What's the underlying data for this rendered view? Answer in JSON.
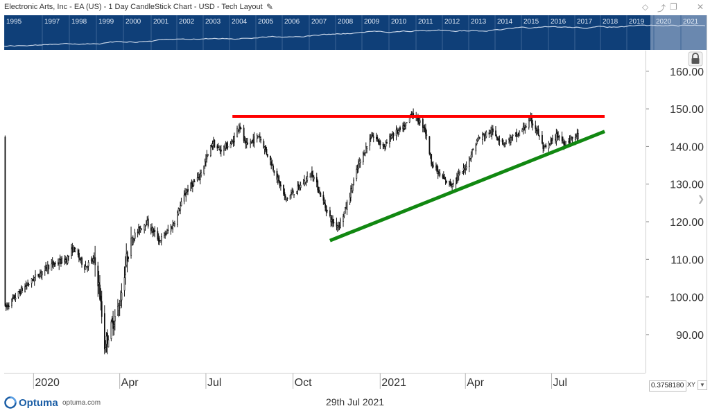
{
  "window": {
    "title": "Electronic Arts, Inc - EA (US) - 1 Day CandleStick Chart - USD - Tech Layout",
    "edit_icon": "pencil-icon",
    "controls": [
      "diamond-icon",
      "pin-icon",
      "restore-icon",
      "close-icon"
    ]
  },
  "overview": {
    "years": [
      "1995",
      "1997",
      "1998",
      "1999",
      "2000",
      "2001",
      "2002",
      "2003",
      "2004",
      "2005",
      "2006",
      "2007",
      "2008",
      "2009",
      "2010",
      "2011",
      "2012",
      "2013",
      "2014",
      "2015",
      "2016",
      "2017",
      "2018",
      "2019",
      "2020",
      "2021"
    ],
    "background": "#0f3f78",
    "line_color": "#c9d6e8",
    "selection_color": "#8aa2c2"
  },
  "chart_data": {
    "type": "candlestick",
    "title": "Electronic Arts, Inc - EA (US) - 1 Day CandleStick Chart - USD - Tech Layout",
    "x_tick_labels": [
      "2020",
      "Apr",
      "Jul",
      "Oct",
      "2021",
      "Apr",
      "Jul"
    ],
    "y_tick_labels": [
      "90.00",
      "100.00",
      "110.00",
      "120.00",
      "130.00",
      "140.00",
      "150.00",
      "160.00"
    ],
    "ylim": [
      82,
      165
    ],
    "grid": false,
    "price_path": [
      [
        "2019-12-02",
        97
      ],
      [
        "2019-12-20",
        102
      ],
      [
        "2020-01-15",
        108
      ],
      [
        "2020-02-05",
        110
      ],
      [
        "2020-02-12",
        113
      ],
      [
        "2020-02-24",
        108
      ],
      [
        "2020-03-05",
        110
      ],
      [
        "2020-03-10",
        103
      ],
      [
        "2020-03-16",
        87
      ],
      [
        "2020-03-23",
        92
      ],
      [
        "2020-04-01",
        98
      ],
      [
        "2020-04-08",
        110
      ],
      [
        "2020-04-15",
        116
      ],
      [
        "2020-04-29",
        120
      ],
      [
        "2020-05-13",
        115
      ],
      [
        "2020-05-27",
        119
      ],
      [
        "2020-06-10",
        128
      ],
      [
        "2020-06-24",
        132
      ],
      [
        "2020-07-08",
        141
      ],
      [
        "2020-07-15",
        139
      ],
      [
        "2020-07-29",
        141
      ],
      [
        "2020-08-05",
        146
      ],
      [
        "2020-08-12",
        140
      ],
      [
        "2020-08-26",
        143
      ],
      [
        "2020-09-09",
        135
      ],
      [
        "2020-09-23",
        126
      ],
      [
        "2020-10-07",
        129
      ],
      [
        "2020-10-21",
        133
      ],
      [
        "2020-11-04",
        124
      ],
      [
        "2020-11-11",
        120
      ],
      [
        "2020-11-18",
        119
      ],
      [
        "2020-11-25",
        123
      ],
      [
        "2020-12-09",
        135
      ],
      [
        "2020-12-23",
        143
      ],
      [
        "2021-01-06",
        140
      ],
      [
        "2021-01-13",
        143
      ],
      [
        "2021-01-27",
        145
      ],
      [
        "2021-02-03",
        149
      ],
      [
        "2021-02-17",
        145
      ],
      [
        "2021-02-24",
        136
      ],
      [
        "2021-03-03",
        133
      ],
      [
        "2021-03-10",
        131
      ],
      [
        "2021-03-17",
        130
      ],
      [
        "2021-03-31",
        134
      ],
      [
        "2021-04-14",
        142
      ],
      [
        "2021-04-28",
        144
      ],
      [
        "2021-05-12",
        141
      ],
      [
        "2021-05-26",
        143
      ],
      [
        "2021-06-09",
        147
      ],
      [
        "2021-06-16",
        144
      ],
      [
        "2021-06-23",
        139
      ],
      [
        "2021-07-07",
        143
      ],
      [
        "2021-07-14",
        141
      ],
      [
        "2021-07-29",
        143
      ]
    ],
    "resistance_line": {
      "level": 148,
      "from": "2020-07-29",
      "to": "2021-08-26",
      "color": "#ff0000"
    },
    "support_line": {
      "from": [
        "2020-11-09",
        115
      ],
      "to": [
        "2021-08-26",
        144
      ],
      "color": "#118811"
    }
  },
  "lock_icon": "lock-icon",
  "nav_icon": "chevron-right-icon",
  "crosshair": {
    "readout": "0.3758180",
    "mode_label": "XY",
    "toggle_icon": "chevron-down-icon"
  },
  "footer": {
    "date": "29th Jul 2021",
    "brand_name": "Optuma",
    "brand_site": "optuma.com",
    "brand_logo": "optuma-logo-icon",
    "brand_color": "#1b5ea6"
  }
}
